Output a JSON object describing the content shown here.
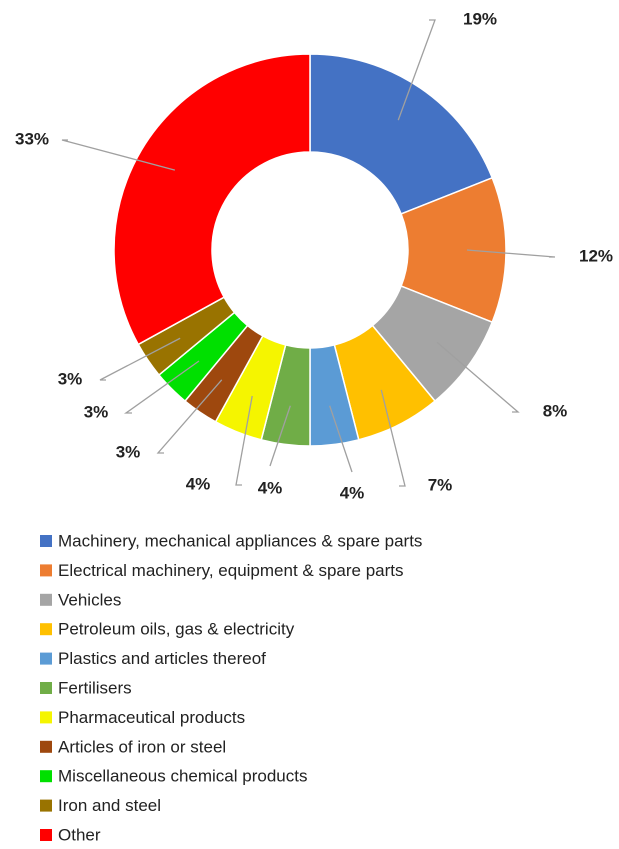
{
  "chart_data": {
    "type": "donut",
    "categories": [
      "Machinery, mechanical appliances & spare parts",
      "Electrical machinery, equipment & spare parts",
      "Vehicles",
      "Petroleum oils, gas & electricity",
      "Plastics and articles thereof",
      "Fertilisers",
      "Pharmaceutical products",
      "Articles of iron or steel",
      "Miscellaneous chemical products",
      "Iron and steel",
      "Other"
    ],
    "values": [
      19,
      12,
      8,
      7,
      4,
      4,
      4,
      3,
      3,
      3,
      33
    ],
    "value_labels": [
      "19%",
      "12%",
      "8%",
      "7%",
      "4%",
      "4%",
      "4%",
      "3%",
      "3%",
      "3%",
      "33%"
    ],
    "colors": [
      "#4472c4",
      "#ed7d31",
      "#a5a5a5",
      "#ffc000",
      "#5b9bd5",
      "#70ad47",
      "#f5f500",
      "#9e480e",
      "#00e000",
      "#997300",
      "#ff0000"
    ],
    "legend": "bottom"
  }
}
